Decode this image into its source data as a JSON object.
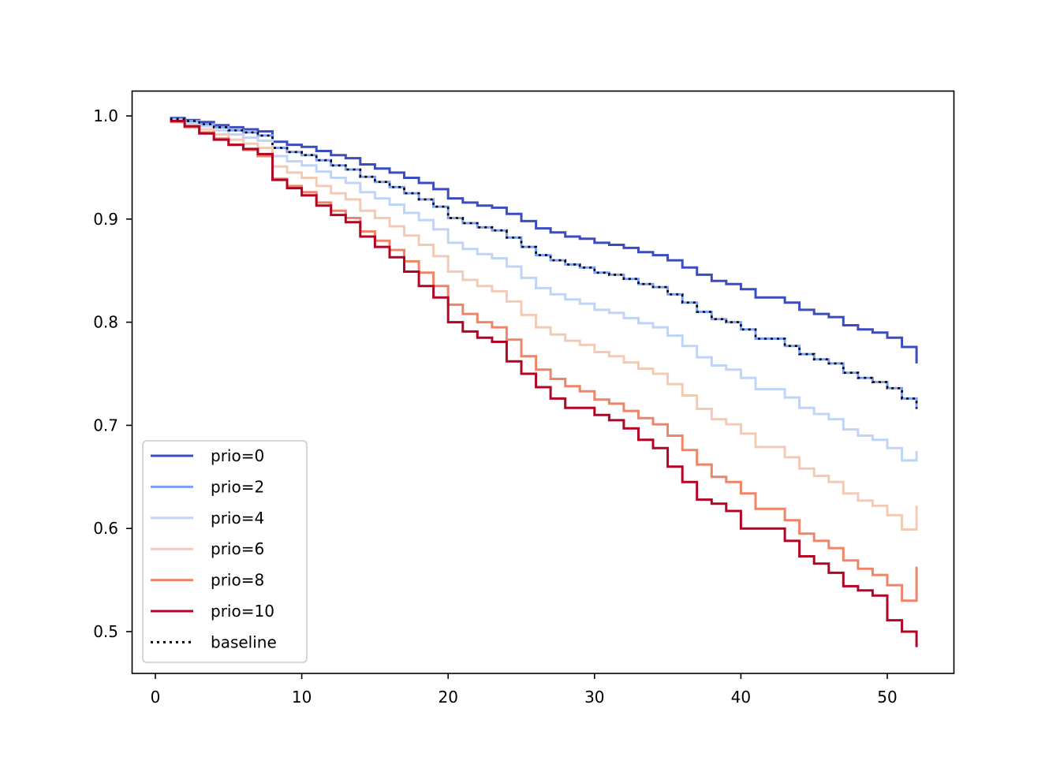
{
  "chart_data": {
    "type": "line",
    "step": "post",
    "title": "",
    "xlabel": "",
    "ylabel": "",
    "xlim": [
      -1.6,
      54.6
    ],
    "ylim": [
      0.463,
      1.024
    ],
    "grid": false,
    "legend_position": "lower left",
    "x_ticks": [
      0,
      10,
      20,
      30,
      40,
      50
    ],
    "x_tick_labels": [
      "0",
      "10",
      "20",
      "30",
      "40",
      "50"
    ],
    "y_ticks": [
      0.5,
      0.6,
      0.7,
      0.8,
      0.9,
      1.0
    ],
    "y_tick_labels": [
      "0.5",
      "0.6",
      "0.7",
      "0.8",
      "0.9",
      "1.0"
    ],
    "x": [
      1,
      2,
      3,
      4,
      5,
      6,
      7,
      8,
      9,
      10,
      11,
      12,
      13,
      14,
      15,
      16,
      17,
      18,
      19,
      20,
      21,
      22,
      23,
      24,
      25,
      26,
      27,
      28,
      29,
      30,
      31,
      32,
      33,
      34,
      35,
      36,
      37,
      38,
      39,
      40,
      41,
      42,
      43,
      44,
      45,
      46,
      47,
      48,
      49,
      50,
      51,
      52
    ],
    "series": [
      {
        "name": "prio=0",
        "color": "#3b4cc0",
        "style": "solid",
        "values": [
          0.998,
          0.996,
          0.994,
          0.991,
          0.989,
          0.987,
          0.985,
          0.975,
          0.972,
          0.97,
          0.966,
          0.962,
          0.959,
          0.953,
          0.949,
          0.945,
          0.94,
          0.935,
          0.929,
          0.92,
          0.916,
          0.913,
          0.911,
          0.905,
          0.898,
          0.891,
          0.887,
          0.883,
          0.881,
          0.877,
          0.875,
          0.872,
          0.868,
          0.865,
          0.86,
          0.853,
          0.846,
          0.84,
          0.837,
          0.832,
          0.824,
          0.824,
          0.819,
          0.812,
          0.808,
          0.805,
          0.797,
          0.793,
          0.79,
          0.785,
          0.776,
          0.768
        ]
      },
      {
        "name": "prio=2",
        "color": "#7b9ff9",
        "style": "solid",
        "values": [
          0.997,
          0.995,
          0.992,
          0.989,
          0.986,
          0.984,
          0.981,
          0.969,
          0.965,
          0.962,
          0.957,
          0.952,
          0.948,
          0.941,
          0.936,
          0.931,
          0.925,
          0.919,
          0.912,
          0.901,
          0.896,
          0.892,
          0.889,
          0.882,
          0.873,
          0.865,
          0.86,
          0.856,
          0.853,
          0.848,
          0.846,
          0.842,
          0.837,
          0.834,
          0.827,
          0.819,
          0.81,
          0.803,
          0.8,
          0.793,
          0.784,
          0.784,
          0.777,
          0.769,
          0.764,
          0.76,
          0.751,
          0.746,
          0.742,
          0.736,
          0.726,
          0.725
        ]
      },
      {
        "name": "prio=4",
        "color": "#c0d4f5",
        "style": "solid",
        "values": [
          0.996,
          0.993,
          0.99,
          0.986,
          0.982,
          0.979,
          0.976,
          0.961,
          0.956,
          0.952,
          0.946,
          0.94,
          0.935,
          0.926,
          0.92,
          0.914,
          0.906,
          0.899,
          0.89,
          0.877,
          0.871,
          0.866,
          0.862,
          0.854,
          0.843,
          0.833,
          0.827,
          0.822,
          0.818,
          0.812,
          0.809,
          0.804,
          0.799,
          0.795,
          0.787,
          0.777,
          0.766,
          0.758,
          0.754,
          0.746,
          0.735,
          0.735,
          0.727,
          0.717,
          0.711,
          0.706,
          0.696,
          0.69,
          0.686,
          0.678,
          0.666,
          0.675
        ]
      },
      {
        "name": "prio=6",
        "color": "#f2cbb7",
        "style": "solid",
        "values": [
          0.995,
          0.991,
          0.987,
          0.982,
          0.977,
          0.973,
          0.969,
          0.951,
          0.945,
          0.94,
          0.932,
          0.925,
          0.919,
          0.908,
          0.901,
          0.893,
          0.884,
          0.875,
          0.864,
          0.849,
          0.841,
          0.835,
          0.83,
          0.82,
          0.807,
          0.795,
          0.788,
          0.782,
          0.778,
          0.771,
          0.767,
          0.761,
          0.755,
          0.75,
          0.74,
          0.729,
          0.716,
          0.706,
          0.701,
          0.692,
          0.679,
          0.679,
          0.669,
          0.658,
          0.651,
          0.645,
          0.634,
          0.627,
          0.622,
          0.613,
          0.599,
          0.622
        ]
      },
      {
        "name": "prio=8",
        "color": "#ee8468",
        "style": "solid",
        "values": [
          0.994,
          0.989,
          0.984,
          0.978,
          0.972,
          0.967,
          0.961,
          0.939,
          0.932,
          0.926,
          0.916,
          0.908,
          0.901,
          0.888,
          0.879,
          0.87,
          0.859,
          0.848,
          0.835,
          0.817,
          0.808,
          0.8,
          0.795,
          0.783,
          0.767,
          0.754,
          0.745,
          0.738,
          0.733,
          0.725,
          0.721,
          0.714,
          0.707,
          0.701,
          0.69,
          0.676,
          0.662,
          0.65,
          0.645,
          0.634,
          0.619,
          0.619,
          0.608,
          0.595,
          0.588,
          0.581,
          0.569,
          0.561,
          0.555,
          0.545,
          0.53,
          0.563
        ]
      },
      {
        "name": "prio=10",
        "color": "#b40426",
        "style": "solid",
        "values": [
          0.995,
          0.99,
          0.983,
          0.977,
          0.972,
          0.968,
          0.963,
          0.938,
          0.93,
          0.923,
          0.913,
          0.904,
          0.897,
          0.883,
          0.873,
          0.863,
          0.849,
          0.835,
          0.824,
          0.8,
          0.791,
          0.785,
          0.781,
          0.762,
          0.75,
          0.737,
          0.726,
          0.717,
          0.717,
          0.71,
          0.705,
          0.697,
          0.686,
          0.678,
          0.66,
          0.645,
          0.628,
          0.624,
          0.617,
          0.6,
          0.6,
          0.6,
          0.588,
          0.573,
          0.566,
          0.557,
          0.544,
          0.54,
          0.535,
          0.511,
          0.5,
          0.499
        ]
      },
      {
        "name": "baseline",
        "color": "#000000",
        "style": "dotted",
        "values": [
          0.997,
          0.995,
          0.992,
          0.989,
          0.986,
          0.984,
          0.981,
          0.969,
          0.965,
          0.962,
          0.957,
          0.952,
          0.948,
          0.941,
          0.936,
          0.931,
          0.925,
          0.919,
          0.912,
          0.901,
          0.896,
          0.892,
          0.889,
          0.882,
          0.873,
          0.865,
          0.86,
          0.856,
          0.853,
          0.848,
          0.846,
          0.842,
          0.837,
          0.834,
          0.827,
          0.819,
          0.81,
          0.803,
          0.8,
          0.793,
          0.784,
          0.784,
          0.777,
          0.769,
          0.764,
          0.76,
          0.751,
          0.746,
          0.742,
          0.736,
          0.726,
          0.725
        ]
      }
    ],
    "series_end_drop": {
      "prio=0": 0.76,
      "prio=2": 0.716,
      "prio=4": 0.666,
      "prio=6": 0.611,
      "prio=8": 0.551,
      "prio=10": 0.485,
      "baseline": 0.716
    }
  },
  "legend": {
    "items": [
      {
        "label": "prio=0",
        "color": "#3b4cc0",
        "style": "solid"
      },
      {
        "label": "prio=2",
        "color": "#7b9ff9",
        "style": "solid"
      },
      {
        "label": "prio=4",
        "color": "#c0d4f5",
        "style": "solid"
      },
      {
        "label": "prio=6",
        "color": "#f2cbb7",
        "style": "solid"
      },
      {
        "label": "prio=8",
        "color": "#ee8468",
        "style": "solid"
      },
      {
        "label": "prio=10",
        "color": "#b40426",
        "style": "solid"
      },
      {
        "label": "baseline",
        "color": "#000000",
        "style": "dotted"
      }
    ]
  }
}
